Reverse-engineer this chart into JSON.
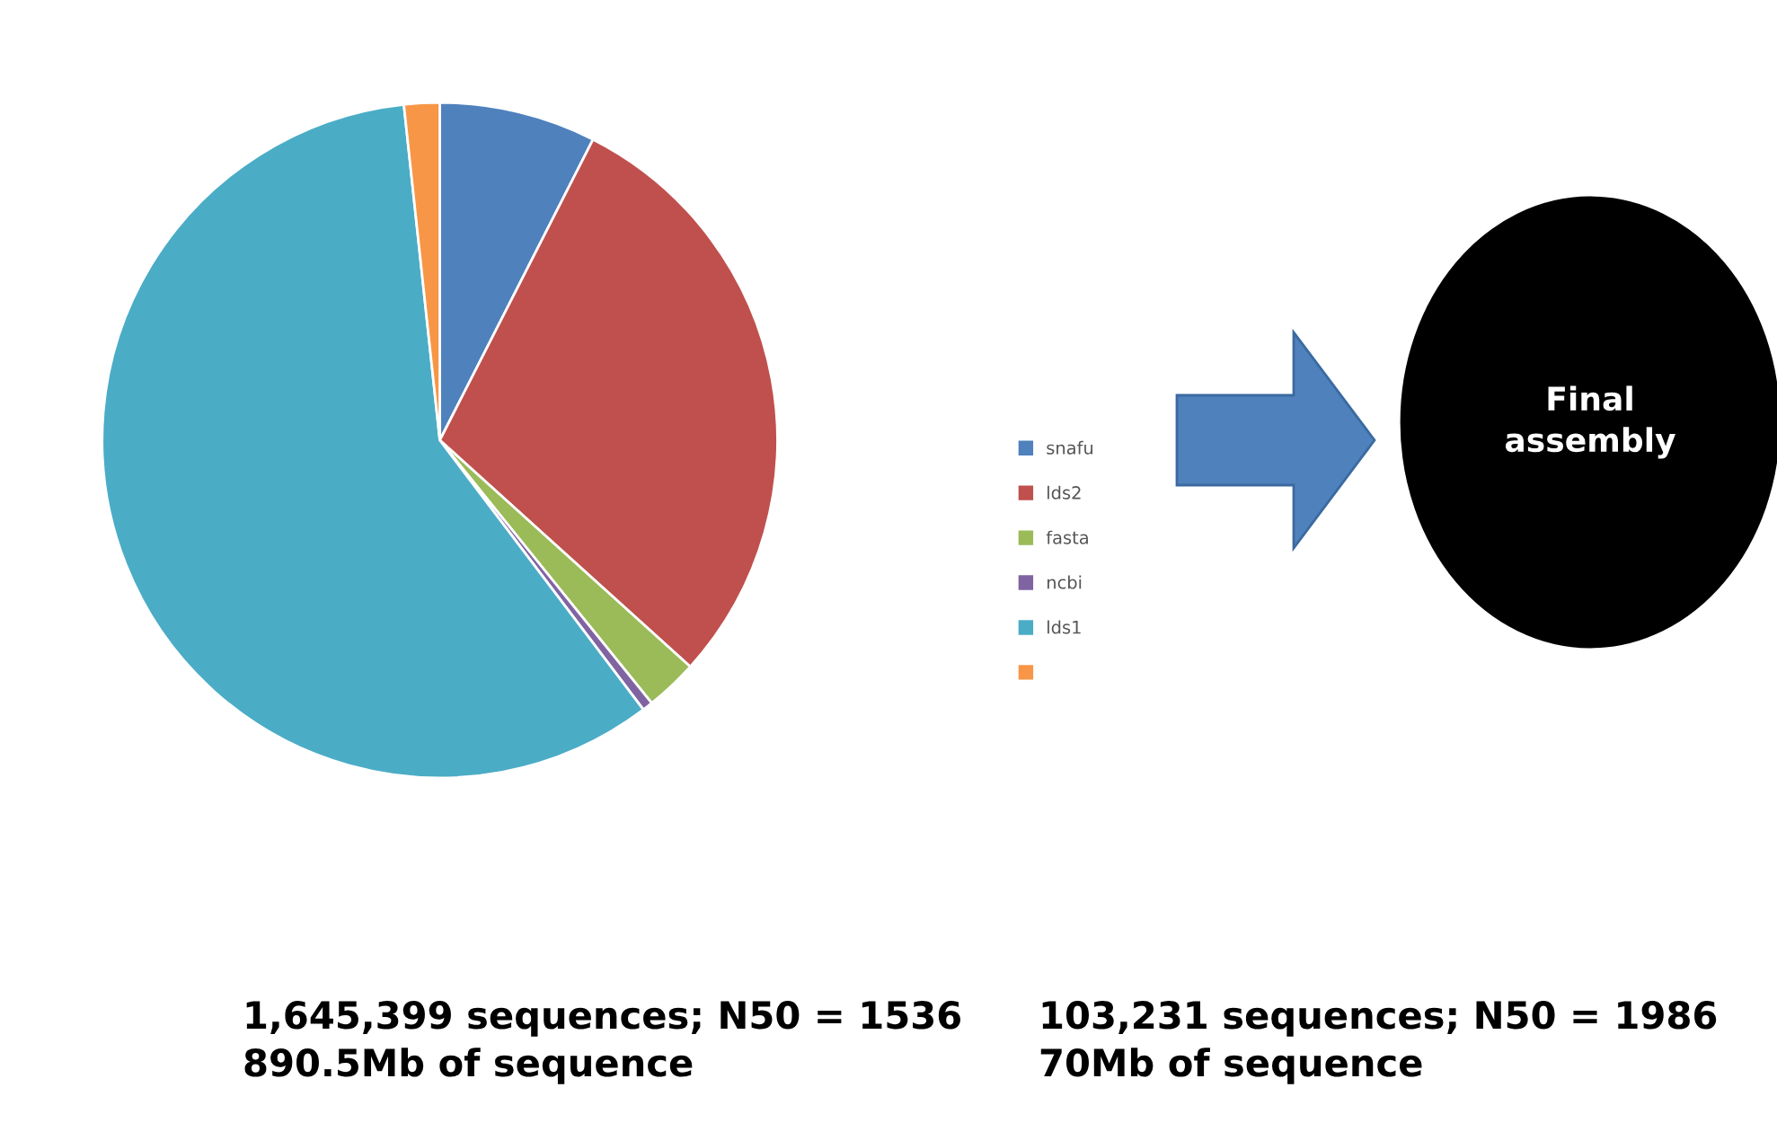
{
  "chart_data": {
    "type": "pie",
    "categories": [
      "snafu",
      "lds2",
      "fasta",
      "ncbi",
      "lds1",
      null
    ],
    "values": [
      7.5,
      29.2,
      2.5,
      0.5,
      58.6,
      1.7
    ],
    "colors": [
      "#4f81bd",
      "#c0504d",
      "#9bbb59",
      "#8064a2",
      "#4bacc6",
      "#f79646"
    ],
    "legend": "right",
    "annotations": [
      "Final\nassembly",
      "1,645,399 sequences; N50 = 1536\n890.5Mb of sequence",
      "103,231 sequences; N50 = 1986\n70Mb of sequence"
    ]
  }
}
